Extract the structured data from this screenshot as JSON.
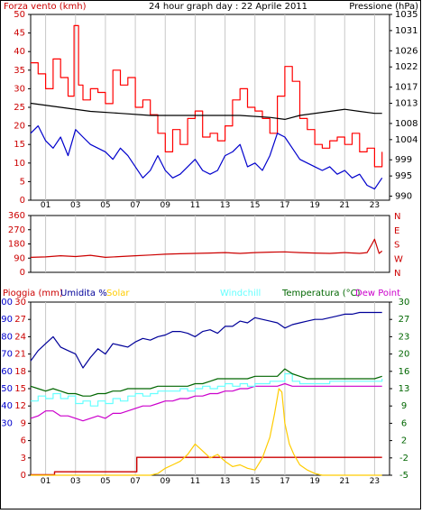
{
  "colors": {
    "wind_gust": "#ff0000",
    "wind_avg": "#0000cc",
    "pressure": "#000000",
    "direction": "#cc0000",
    "rain": "#cc0000",
    "humidity": "#000099",
    "solar": "#ffcc00",
    "windchill": "#66ffff",
    "temperature": "#006600",
    "dew_point": "#cc00cc",
    "grid": "#c8c8c8",
    "axis_blue": "#0000cc",
    "axis_red": "#cc0000",
    "axis_green": "#006600"
  },
  "header": {
    "wind_label": "Forza vento (kmh)",
    "title": "24 hour graph day : 22 Aprile 2011",
    "pressure_label": "Pressione (hPa)"
  },
  "legend3": {
    "rain": "Pioggia (mm)",
    "humidity": "Umidita %",
    "solar": "Solar",
    "windchill": "Windchill",
    "temperature": "Temperatura (°C)",
    "dew_point": "Dew Point"
  },
  "chart_data": [
    {
      "type": "line",
      "title": "24 hour graph day : 22 Aprile 2011",
      "xlabel": "",
      "x_ticks": [
        "01",
        "03",
        "05",
        "07",
        "09",
        "11",
        "13",
        "15",
        "17",
        "19",
        "21",
        "23"
      ],
      "xlim": [
        0,
        24
      ],
      "ylabel": "Forza vento (kmh)",
      "ylim": [
        0,
        50
      ],
      "y_ticks": [
        0,
        5,
        10,
        15,
        20,
        25,
        30,
        35,
        40,
        45,
        50
      ],
      "y2label": "Pressione (hPa)",
      "y2lim": [
        989,
        1035
      ],
      "y2_ticks": [
        990,
        995,
        999,
        1004,
        1008,
        1013,
        1017,
        1022,
        1026,
        1031,
        1035
      ],
      "series": [
        {
          "name": "Forza vento (kmh)",
          "axis": "left",
          "x": [
            0.0,
            0.5,
            1.0,
            1.5,
            2.0,
            2.5,
            2.9,
            3.2,
            3.5,
            4.0,
            4.5,
            5.0,
            5.5,
            6.0,
            6.5,
            7.0,
            7.5,
            8.0,
            8.5,
            9.0,
            9.5,
            10.0,
            10.5,
            11.0,
            11.5,
            12.0,
            12.5,
            13.0,
            13.5,
            14.0,
            14.5,
            15.0,
            15.5,
            16.0,
            16.5,
            17.0,
            17.5,
            18.0,
            18.5,
            19.0,
            19.5,
            20.0,
            20.5,
            21.0,
            21.5,
            22.0,
            22.5,
            23.0,
            23.5
          ],
          "values": [
            37,
            34,
            30,
            38,
            33,
            28,
            47,
            31,
            27,
            30,
            29,
            26,
            35,
            31,
            33,
            25,
            27,
            23,
            18,
            13,
            19,
            15,
            22,
            24,
            17,
            18,
            16,
            20,
            27,
            30,
            25,
            24,
            22,
            18,
            28,
            36,
            32,
            22,
            19,
            15,
            14,
            16,
            17,
            15,
            18,
            13,
            14,
            9,
            13
          ]
        },
        {
          "name": "Vento medio (kmh)",
          "axis": "left",
          "x": [
            0.0,
            0.5,
            1.0,
            1.5,
            2.0,
            2.5,
            3.0,
            3.5,
            4.0,
            4.5,
            5.0,
            5.5,
            6.0,
            6.5,
            7.0,
            7.5,
            8.0,
            8.5,
            9.0,
            9.5,
            10.0,
            10.5,
            11.0,
            11.5,
            12.0,
            12.5,
            13.0,
            13.5,
            14.0,
            14.5,
            15.0,
            15.5,
            16.0,
            16.5,
            17.0,
            17.5,
            18.0,
            18.5,
            19.0,
            19.5,
            20.0,
            20.5,
            21.0,
            21.5,
            22.0,
            22.5,
            23.0,
            23.5
          ],
          "values": [
            18,
            20,
            16,
            14,
            17,
            12,
            19,
            17,
            15,
            14,
            13,
            11,
            14,
            12,
            9,
            6,
            8,
            12,
            8,
            6,
            7,
            9,
            11,
            8,
            7,
            8,
            12,
            13,
            15,
            9,
            10,
            8,
            12,
            18,
            17,
            14,
            11,
            10,
            9,
            8,
            9,
            7,
            8,
            6,
            7,
            4,
            3,
            6
          ]
        },
        {
          "name": "Pressione (hPa)",
          "axis": "right",
          "x": [
            0,
            2,
            4,
            6,
            8,
            10,
            12,
            14,
            16,
            17,
            18,
            20,
            21,
            22,
            23,
            23.5
          ],
          "values": [
            1013,
            1012,
            1011,
            1010.5,
            1010,
            1010,
            1010,
            1010,
            1009.5,
            1009,
            1010,
            1011,
            1011.5,
            1011,
            1010.5,
            1010.5
          ]
        }
      ]
    },
    {
      "type": "line",
      "title": "",
      "xlabel": "",
      "xlim": [
        0,
        24
      ],
      "ylabel": "",
      "ylim": [
        0,
        360
      ],
      "y_ticks": [
        0,
        90,
        180,
        270,
        360
      ],
      "y2_labels": [
        "N",
        "W",
        "S",
        "E",
        "N"
      ],
      "series": [
        {
          "name": "",
          "x": [
            0,
            1,
            2,
            3,
            4,
            5,
            6,
            7,
            8,
            9,
            10,
            11,
            12,
            13,
            14,
            15,
            16,
            17,
            18,
            19,
            20,
            21,
            22,
            22.5,
            22.8,
            23.0,
            23.3,
            23.5
          ],
          "values": [
            95,
            98,
            105,
            100,
            108,
            95,
            100,
            105,
            110,
            115,
            118,
            120,
            122,
            125,
            120,
            125,
            128,
            130,
            125,
            122,
            120,
            125,
            120,
            125,
            175,
            210,
            120,
            135
          ]
        }
      ]
    },
    {
      "type": "line",
      "title": "",
      "xlabel": "",
      "xlim": [
        0,
        24
      ],
      "ylabel": "Pioggia (mm) / Umidita % / Solar",
      "ylim": [
        0,
        100
      ],
      "y_ticks": [
        0,
        3,
        6,
        9,
        12,
        15,
        18,
        21,
        24,
        27,
        30
      ],
      "y_ticks_humidity": [
        30,
        40,
        50,
        60,
        70,
        80,
        90,
        100
      ],
      "y2label": "Temperatura (°C)",
      "y2lim": [
        -5,
        30
      ],
      "y2_ticks": [
        -5,
        -2,
        2,
        6,
        9,
        13,
        16,
        20,
        23,
        27,
        30
      ],
      "series": [
        {
          "name": "Pioggia (mm)",
          "axis": "left",
          "x": [
            0,
            1.5,
            1.6,
            7.0,
            7.1,
            23.5
          ],
          "values": [
            0.1,
            0.1,
            0.6,
            0.6,
            3.1,
            3.1
          ]
        },
        {
          "name": "Umidita %",
          "axis": "left",
          "x": [
            0.0,
            0.5,
            1.0,
            1.5,
            2.0,
            2.5,
            3.0,
            3.5,
            4.0,
            4.5,
            5.0,
            5.5,
            6.0,
            6.5,
            7.0,
            7.5,
            8.0,
            8.5,
            9.0,
            9.5,
            10.0,
            10.5,
            11.0,
            11.5,
            12.0,
            12.5,
            13.0,
            13.5,
            14.0,
            14.5,
            15.0,
            15.5,
            16.0,
            16.5,
            17.0,
            17.5,
            18.0,
            18.5,
            19.0,
            19.5,
            20.0,
            20.5,
            21.0,
            21.5,
            22.0,
            22.5,
            23.0,
            23.5
          ],
          "values": [
            66,
            72,
            76,
            80,
            74,
            72,
            70,
            62,
            68,
            73,
            70,
            76,
            75,
            74,
            77,
            79,
            78,
            80,
            81,
            83,
            83,
            82,
            80,
            83,
            84,
            82,
            86,
            86,
            89,
            88,
            91,
            90,
            89,
            88,
            85,
            87,
            88,
            89,
            90,
            90,
            91,
            92,
            93,
            93,
            94,
            94,
            94,
            94
          ]
        },
        {
          "name": "Solar",
          "axis": "left",
          "x": [
            0,
            8.0,
            8.5,
            9.0,
            9.5,
            10.0,
            10.5,
            11.0,
            11.5,
            12.0,
            12.5,
            13.0,
            13.5,
            14.0,
            14.5,
            15.0,
            15.5,
            16.0,
            16.3,
            16.6,
            16.8,
            17.0,
            17.3,
            17.6,
            18.0,
            18.5,
            19.0,
            19.5,
            20,
            23.5
          ],
          "values": [
            0,
            0,
            1,
            4,
            6,
            8,
            12,
            18,
            14,
            10,
            12,
            8,
            5,
            6,
            4,
            3,
            10,
            22,
            35,
            50,
            48,
            30,
            18,
            12,
            6,
            3,
            1,
            0,
            0,
            0
          ]
        },
        {
          "name": "Windchill",
          "axis": "right",
          "x": [
            0.0,
            0.5,
            1.0,
            1.5,
            2.0,
            2.5,
            3.0,
            3.5,
            4.0,
            4.5,
            5.0,
            5.5,
            6.0,
            6.5,
            7.0,
            7.5,
            8.0,
            8.5,
            9.0,
            9.5,
            10.0,
            10.5,
            11.0,
            11.5,
            12.0,
            12.5,
            13.0,
            13.5,
            14.0,
            14.5,
            15.0,
            15.5,
            16.0,
            16.5,
            17.0,
            17.5,
            18.0,
            18.5,
            19.0,
            19.5,
            20.0,
            20.5,
            21.0,
            21.5,
            22.0,
            22.5,
            23.0,
            23.5
          ],
          "values": [
            10,
            11,
            10.5,
            11.5,
            10.5,
            11,
            9.5,
            10,
            9,
            10,
            9.5,
            10.5,
            10,
            11,
            11.5,
            11,
            11.5,
            12,
            12,
            12,
            12.5,
            12,
            12.5,
            13,
            12.5,
            13,
            13.5,
            13,
            13.5,
            13,
            13.5,
            13.5,
            14,
            14,
            15.5,
            14,
            13.5,
            13.5,
            13.5,
            13.5,
            14,
            14,
            14,
            14,
            14,
            14,
            14,
            14.5
          ]
        },
        {
          "name": "Temperatura (°C)",
          "axis": "right",
          "x": [
            0.0,
            0.5,
            1.0,
            1.5,
            2.0,
            2.5,
            3.0,
            3.5,
            4.0,
            4.5,
            5.0,
            5.5,
            6.0,
            6.5,
            7.0,
            7.5,
            8.0,
            8.5,
            9.0,
            9.5,
            10.0,
            10.5,
            11.0,
            11.5,
            12.0,
            12.5,
            13.0,
            13.5,
            14.0,
            14.5,
            15.0,
            15.5,
            16.0,
            16.5,
            17.0,
            17.5,
            18.0,
            18.5,
            19.0,
            19.5,
            20.0,
            20.5,
            21.0,
            21.5,
            22.0,
            22.5,
            23.0,
            23.5
          ],
          "values": [
            13,
            12.5,
            12,
            12.5,
            12,
            11.5,
            11.5,
            11,
            11,
            11.5,
            11.5,
            12,
            12,
            12.5,
            12.5,
            12.5,
            12.5,
            13,
            13,
            13,
            13,
            13,
            13.5,
            13.5,
            14,
            14.5,
            14.5,
            14.5,
            14.5,
            14.5,
            15,
            15,
            15,
            15,
            16.5,
            15.5,
            15,
            14.5,
            14.5,
            14.5,
            14.5,
            14.5,
            14.5,
            14.5,
            14.5,
            14.5,
            14.5,
            15
          ]
        },
        {
          "name": "Dew Point",
          "axis": "right",
          "x": [
            0.0,
            0.5,
            1.0,
            1.5,
            2.0,
            2.5,
            3.0,
            3.5,
            4.0,
            4.5,
            5.0,
            5.5,
            6.0,
            6.5,
            7.0,
            7.5,
            8.0,
            8.5,
            9.0,
            9.5,
            10.0,
            10.5,
            11.0,
            11.5,
            12.0,
            12.5,
            13.0,
            13.5,
            14.0,
            14.5,
            15.0,
            15.5,
            16.0,
            16.5,
            17.0,
            17.5,
            18.0,
            18.5,
            19.0,
            19.5,
            20.0,
            20.5,
            21.0,
            21.5,
            22.0,
            22.5,
            23.0,
            23.5
          ],
          "values": [
            6.5,
            7,
            8,
            8,
            7,
            7,
            6.5,
            6,
            6.5,
            7,
            6.5,
            7.5,
            7.5,
            8,
            8.5,
            9,
            9,
            9.5,
            10,
            10,
            10.5,
            10.5,
            11,
            11,
            11.5,
            11.5,
            12,
            12,
            12.5,
            12.5,
            13,
            13,
            13,
            13,
            13.5,
            13,
            13,
            13,
            13,
            13,
            13,
            13,
            13,
            13,
            13,
            13,
            13,
            13
          ]
        }
      ]
    }
  ]
}
